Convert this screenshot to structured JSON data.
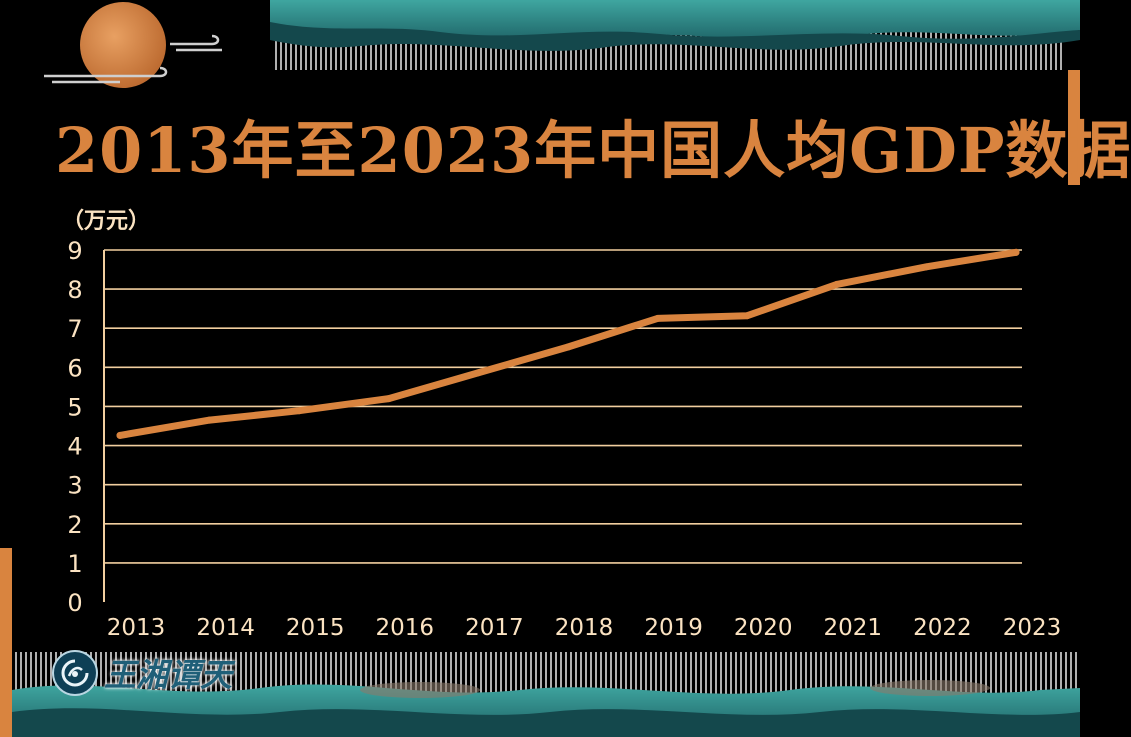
{
  "title": "2013年至2023年中国人均GDP数据",
  "brand": {
    "name": "王湘谭天",
    "icon": "circular-logo-icon"
  },
  "colors": {
    "background": "#000000",
    "title": "#D9843F",
    "line": "#D9843F",
    "grid": "#F2CFA0",
    "tick_text": "#FBE3C2",
    "teal": "#2E8C8A",
    "accent_orange": "#D9843F"
  },
  "chart_data": {
    "type": "line",
    "title": "2013年至2023年中国人均GDP数据",
    "ylabel": "（万元）",
    "xlabel": "",
    "categories": [
      "2013",
      "2014",
      "2015",
      "2016",
      "2017",
      "2018",
      "2019",
      "2020",
      "2021",
      "2022",
      "2023"
    ],
    "yticks": [
      "0",
      "1",
      "2",
      "3",
      "4",
      "5",
      "6",
      "7",
      "8",
      "9"
    ],
    "ylim": [
      0,
      9
    ],
    "grid": true,
    "legend": "none",
    "series": [
      {
        "values": [
          4.26,
          4.65,
          4.89,
          5.2,
          5.86,
          6.52,
          7.25,
          7.32,
          8.12,
          8.57,
          8.94
        ]
      }
    ]
  }
}
